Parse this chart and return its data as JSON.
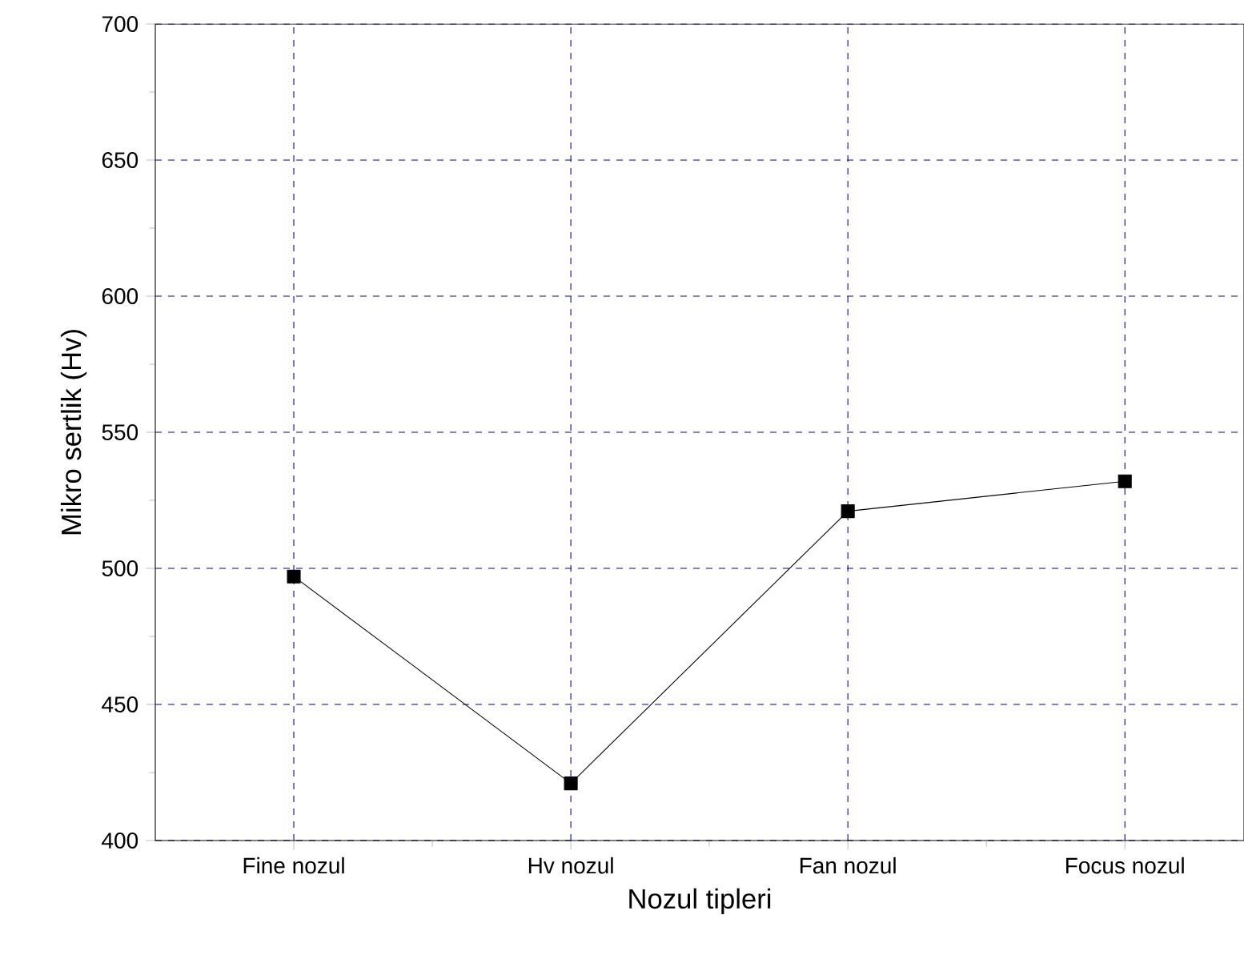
{
  "chart_data": {
    "type": "line",
    "xlabel": "Nozul tipleri",
    "ylabel": "Mikro sertlik (Hv)",
    "categories": [
      "Fine nozul",
      "Hv nozul",
      "Fan nozul",
      "Focus nozul"
    ],
    "series": [
      {
        "color": "#000000",
        "values": [
          497,
          421,
          521,
          532
        ]
      }
    ],
    "ylim": [
      400,
      700
    ],
    "yticks": [
      400,
      450,
      500,
      550,
      600,
      650,
      700
    ],
    "grid": true,
    "marker": "square",
    "line_style": "solid"
  }
}
